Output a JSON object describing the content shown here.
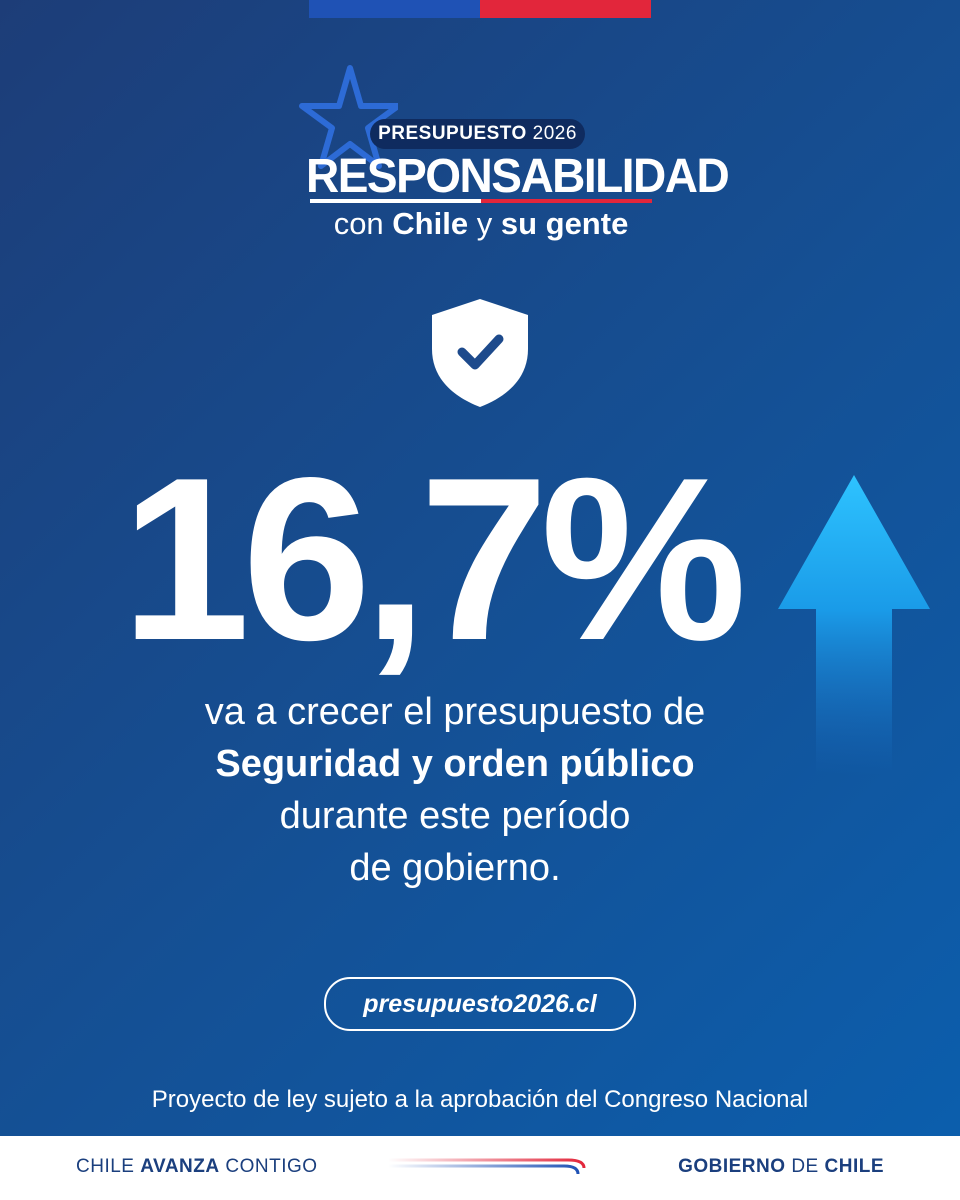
{
  "header": {
    "flag_colors": {
      "blue": "#1f52b5",
      "red": "#e2263b"
    }
  },
  "logo": {
    "pill_word": "PRESUPUESTO",
    "pill_year": "2026",
    "main": "RESPONSABILIDAD",
    "sub_prefix": "con",
    "sub_bold1": "Chile",
    "sub_mid": "y",
    "sub_bold2": "su gente",
    "icon": "star-outline-icon"
  },
  "badge": {
    "icon": "shield-check-icon"
  },
  "stat": {
    "value": "16,7%",
    "trend_icon": "arrow-up-icon"
  },
  "description": {
    "line1": "va a crecer el presupuesto de",
    "line2": "Seguridad y orden público",
    "line3": "durante este período",
    "line4": "de gobierno."
  },
  "link": {
    "label": "presupuesto2026.cl"
  },
  "disclaimer": "Proyecto de ley sujeto a la aprobación del Congreso Nacional",
  "footer": {
    "left_normal": "CHILE",
    "left_bold": "AVANZA",
    "left_end": "CONTIGO",
    "right_bold1": "GOBIERNO",
    "right_mid": "DE",
    "right_bold2": "CHILE"
  },
  "colors": {
    "background_start": "#1d3d78",
    "background_end": "#0b5fae",
    "accent_red": "#e2263b",
    "accent_cyan": "#2ec3ff",
    "footer_text": "#1b3f7e"
  }
}
